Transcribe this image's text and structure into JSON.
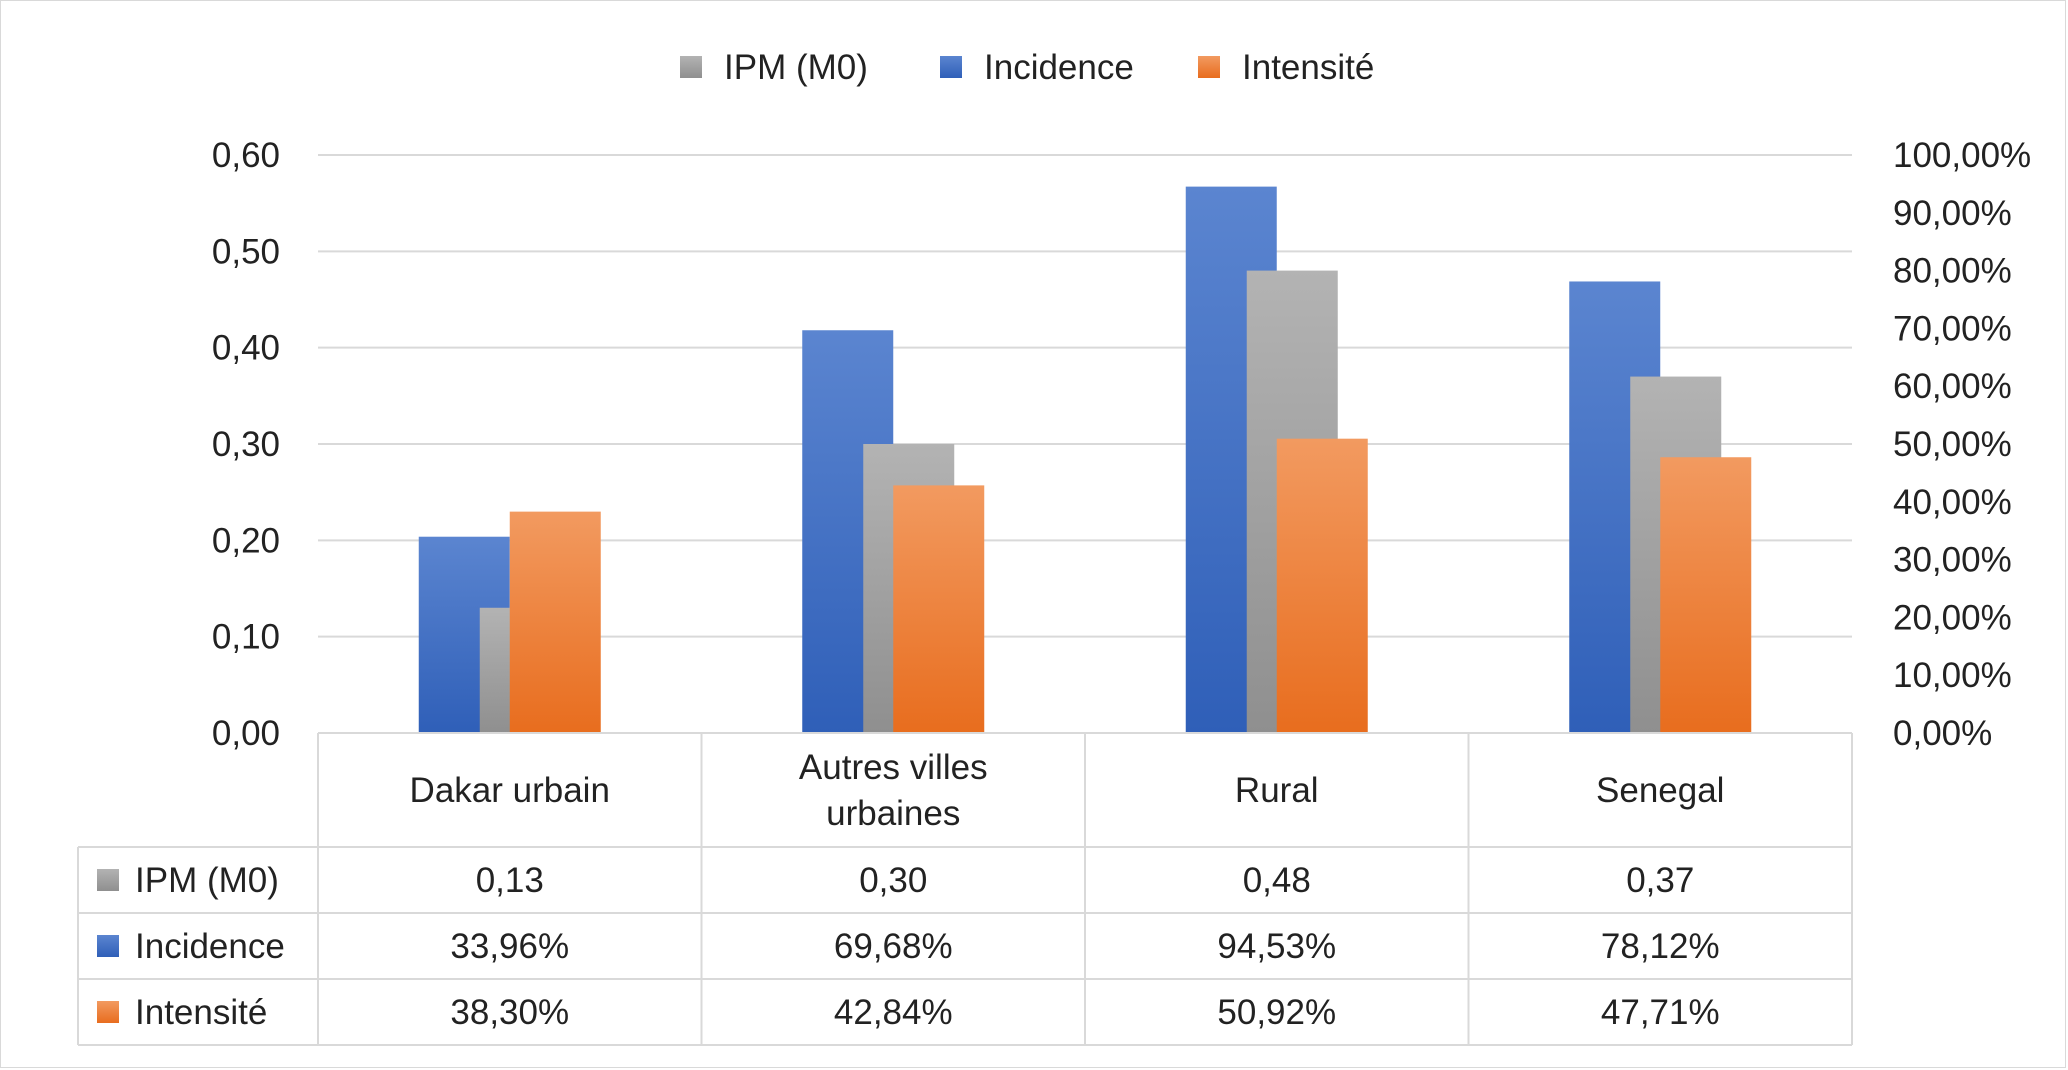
{
  "chart_data": {
    "type": "bar",
    "categories": [
      "Dakar urbain",
      "Autres villes\nurbaines",
      "Rural",
      "Senegal"
    ],
    "series": [
      {
        "name": "IPM (M0)",
        "axis": "left",
        "values": [
          0.13,
          0.3,
          0.48,
          0.37
        ],
        "labels": [
          "0,13",
          "0,30",
          "0,48",
          "0,37"
        ],
        "color": "#a5a5a5"
      },
      {
        "name": "Incidence",
        "axis": "right",
        "values": [
          33.96,
          69.68,
          94.53,
          78.12
        ],
        "labels": [
          "33,96%",
          "69,68%",
          "94,53%",
          "78,12%"
        ],
        "color": "#4472c4"
      },
      {
        "name": "Intensité",
        "axis": "right",
        "values": [
          38.3,
          42.84,
          50.92,
          47.71
        ],
        "labels": [
          "38,30%",
          "42,84%",
          "50,92%",
          "47,71%"
        ],
        "color": "#ed7d31"
      }
    ],
    "legend_order": [
      "IPM (M0)",
      "Incidence",
      "Intensité"
    ],
    "legend_position": "top",
    "left_axis": {
      "min": 0,
      "max": 0.6,
      "step": 0.1,
      "ticks": [
        "0,00",
        "0,10",
        "0,20",
        "0,30",
        "0,40",
        "0,50",
        "0,60"
      ]
    },
    "right_axis": {
      "min": 0,
      "max": 100,
      "step": 10,
      "ticks": [
        "0,00%",
        "10,00%",
        "20,00%",
        "30,00%",
        "40,00%",
        "50,00%",
        "60,00%",
        "70,00%",
        "80,00%",
        "90,00%",
        "100,00%"
      ]
    },
    "grid": true,
    "data_table": true
  }
}
